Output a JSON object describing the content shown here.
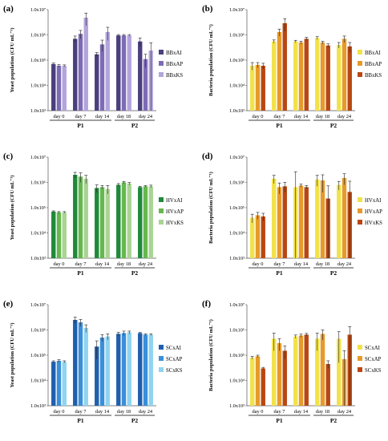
{
  "chart_data": [
    {
      "panel": "(a)",
      "type": "bar",
      "ylabel": "Yeast population (CFU mL⁻¹)",
      "yscale": "log",
      "ylim": [
        1000,
        10000000
      ],
      "yticks": [
        "1.0x10³",
        "1.0x10⁴",
        "1.0x10⁵",
        "1.0x10⁶",
        "1.0x10⁷"
      ],
      "categories": [
        "day 0",
        "day 7",
        "day 14",
        "day 18",
        "day 24"
      ],
      "groups": [
        {
          "label": "P1",
          "categories": [
            "day 0",
            "day 7",
            "day 14"
          ]
        },
        {
          "label": "P2",
          "categories": [
            "day 18",
            "day 24"
          ]
        }
      ],
      "legend_position": "right",
      "series": [
        {
          "name": "BBxAI",
          "color": "#4b3f7e",
          "values": [
            70000,
            700000,
            170000,
            950000,
            550000
          ],
          "errors": [
            7000,
            200000,
            30000,
            80000,
            200000
          ]
        },
        {
          "name": "BBxAP",
          "color": "#7d6bb6",
          "values": [
            60000,
            1100000,
            420000,
            950000,
            110000
          ],
          "errors": [
            6000,
            400000,
            200000,
            80000,
            60000
          ]
        },
        {
          "name": "BBxKS",
          "color": "#b3a5dc",
          "values": [
            60000,
            4800000,
            1300000,
            950000,
            240000
          ],
          "errors": [
            5000,
            2500000,
            700000,
            80000,
            250000
          ]
        }
      ]
    },
    {
      "panel": "(b)",
      "type": "bar",
      "ylabel": "Bacteria population (CFU mL⁻¹)",
      "yscale": "log",
      "ylim": [
        1000,
        10000000
      ],
      "yticks": [
        "1.0x10³",
        "1.0x10⁴",
        "1.0x10⁵",
        "1.0x10⁶",
        "1.0x10⁷"
      ],
      "categories": [
        "day 0",
        "day 7",
        "day 14",
        "day 18",
        "day 24"
      ],
      "groups": [
        {
          "label": "P1",
          "categories": [
            "day 0",
            "day 7",
            "day 14"
          ]
        },
        {
          "label": "P2",
          "categories": [
            "day 18",
            "day 24"
          ]
        }
      ],
      "legend_position": "right",
      "series": [
        {
          "name": "BBxAI",
          "color": "#f2e24a",
          "values": [
            60000,
            550000,
            550000,
            750000,
            400000
          ],
          "errors": [
            20000,
            80000,
            60000,
            100000,
            100000
          ]
        },
        {
          "name": "BBxAP",
          "color": "#e69a2a",
          "values": [
            65000,
            1300000,
            500000,
            500000,
            700000
          ],
          "errors": [
            15000,
            400000,
            60000,
            60000,
            200000
          ]
        },
        {
          "name": "BBxKS",
          "color": "#b84713",
          "values": [
            60000,
            2900000,
            700000,
            380000,
            350000
          ],
          "errors": [
            15000,
            1500000,
            100000,
            60000,
            150000
          ]
        }
      ]
    },
    {
      "panel": "(c)",
      "type": "bar",
      "ylabel": "Yeast population (CFU mL⁻¹)",
      "yscale": "log",
      "ylim": [
        1000,
        10000000
      ],
      "yticks": [
        "1.0x10³",
        "1.0x10⁴",
        "1.0x10⁵",
        "1.0x10⁶",
        "1.0x10⁷"
      ],
      "categories": [
        "day 0",
        "day 7",
        "day 14",
        "day 18",
        "day 24"
      ],
      "groups": [
        {
          "label": "P1",
          "categories": [
            "day 0",
            "day 7",
            "day 14"
          ]
        },
        {
          "label": "P2",
          "categories": [
            "day 18",
            "day 24"
          ]
        }
      ],
      "legend_position": "right",
      "series": [
        {
          "name": "HVxAI",
          "color": "#1f8a3a",
          "values": [
            70000,
            2000000,
            600000,
            800000,
            650000
          ],
          "errors": [
            5000,
            500000,
            200000,
            100000,
            50000
          ]
        },
        {
          "name": "HVxAP",
          "color": "#66b84e",
          "values": [
            65000,
            1700000,
            650000,
            1000000,
            700000
          ],
          "errors": [
            5000,
            700000,
            100000,
            100000,
            50000
          ]
        },
        {
          "name": "HVxKS",
          "color": "#a9d494",
          "values": [
            65000,
            1400000,
            550000,
            900000,
            700000
          ],
          "errors": [
            5000,
            500000,
            200000,
            100000,
            80000
          ]
        }
      ]
    },
    {
      "panel": "(d)",
      "type": "bar",
      "ylabel": "Bacteria population (CFU mL⁻¹)",
      "yscale": "log",
      "ylim": [
        1000,
        10000000
      ],
      "yticks": [
        "1.0x10³",
        "1.0x10⁴",
        "1.0x10⁵",
        "1.0x10⁶",
        "1.0x10⁷"
      ],
      "categories": [
        "day 0",
        "day 7",
        "day 14",
        "day 18",
        "day 24"
      ],
      "groups": [
        {
          "label": "P1",
          "categories": [
            "day 0",
            "day 7",
            "day 14"
          ]
        },
        {
          "label": "P2",
          "categories": [
            "day 18",
            "day 24"
          ]
        }
      ],
      "legend_position": "right",
      "series": [
        {
          "name": "HVxAI",
          "color": "#f2e24a",
          "values": [
            40000,
            1400000,
            650000,
            1300000,
            800000
          ],
          "errors": [
            15000,
            500000,
            2000000,
            600000,
            300000
          ]
        },
        {
          "name": "HVxAP",
          "color": "#e69a2a",
          "values": [
            50000,
            650000,
            750000,
            1200000,
            1500000
          ],
          "errors": [
            15000,
            300000,
            100000,
            800000,
            700000
          ]
        },
        {
          "name": "HVxKS",
          "color": "#b84713",
          "values": [
            45000,
            700000,
            650000,
            230000,
            420000
          ],
          "errors": [
            15000,
            300000,
            100000,
            500000,
            700000
          ]
        }
      ]
    },
    {
      "panel": "(e)",
      "type": "bar",
      "ylabel": "Yeast population (CFU mL⁻¹)",
      "yscale": "log",
      "ylim": [
        1000,
        10000000
      ],
      "yticks": [
        "1.0x10³",
        "1.0x10⁴",
        "1.0x10⁵",
        "1.0x10⁶",
        "1.0x10⁷"
      ],
      "categories": [
        "day 0",
        "day 7",
        "day 14",
        "day 18",
        "day 24"
      ],
      "groups": [
        {
          "label": "P1",
          "categories": [
            "day 0",
            "day 7",
            "day 14"
          ]
        },
        {
          "label": "P2",
          "categories": [
            "day 18",
            "day 24"
          ]
        }
      ],
      "legend_position": "right",
      "series": [
        {
          "name": "SCxAI",
          "color": "#1f5fae",
          "values": [
            55000,
            2500000,
            220000,
            700000,
            750000
          ],
          "errors": [
            5000,
            700000,
            150000,
            100000,
            50000
          ]
        },
        {
          "name": "SCxAP",
          "color": "#3a8fd9",
          "values": [
            60000,
            2000000,
            500000,
            750000,
            650000
          ],
          "errors": [
            6000,
            600000,
            150000,
            150000,
            50000
          ]
        },
        {
          "name": "SCxKS",
          "color": "#8fd4f0",
          "values": [
            55000,
            1200000,
            550000,
            800000,
            650000
          ],
          "errors": [
            5000,
            400000,
            150000,
            100000,
            50000
          ]
        }
      ]
    },
    {
      "panel": "(f)",
      "type": "bar",
      "ylabel": "Bacteria population (CFU mL⁻¹)",
      "yscale": "log",
      "ylim": [
        1000,
        10000000
      ],
      "yticks": [
        "1.0x10³",
        "1.0x10⁴",
        "1.0x10⁵",
        "1.0x10⁶",
        "1.0x10⁷"
      ],
      "categories": [
        "day 0",
        "day 7",
        "day 14",
        "day 18",
        "day 24"
      ],
      "groups": [
        {
          "label": "P1",
          "categories": [
            "day 0",
            "day 7",
            "day 14"
          ]
        },
        {
          "label": "P2",
          "categories": [
            "day 18",
            "day 24"
          ]
        }
      ],
      "legend_position": "right",
      "series": [
        {
          "name": "SCxAI",
          "color": "#f2e24a",
          "values": [
            80000,
            450000,
            550000,
            450000,
            450000
          ],
          "errors": [
            10000,
            300000,
            80000,
            300000,
            400000
          ]
        },
        {
          "name": "SCxAP",
          "color": "#e69a2a",
          "values": [
            90000,
            300000,
            600000,
            700000,
            70000
          ],
          "errors": [
            10000,
            150000,
            80000,
            300000,
            80000
          ]
        },
        {
          "name": "SCxKS",
          "color": "#b84713",
          "values": [
            30000,
            150000,
            650000,
            45000,
            650000
          ],
          "errors": [
            3000,
            80000,
            80000,
            15000,
            700000
          ]
        }
      ]
    }
  ]
}
